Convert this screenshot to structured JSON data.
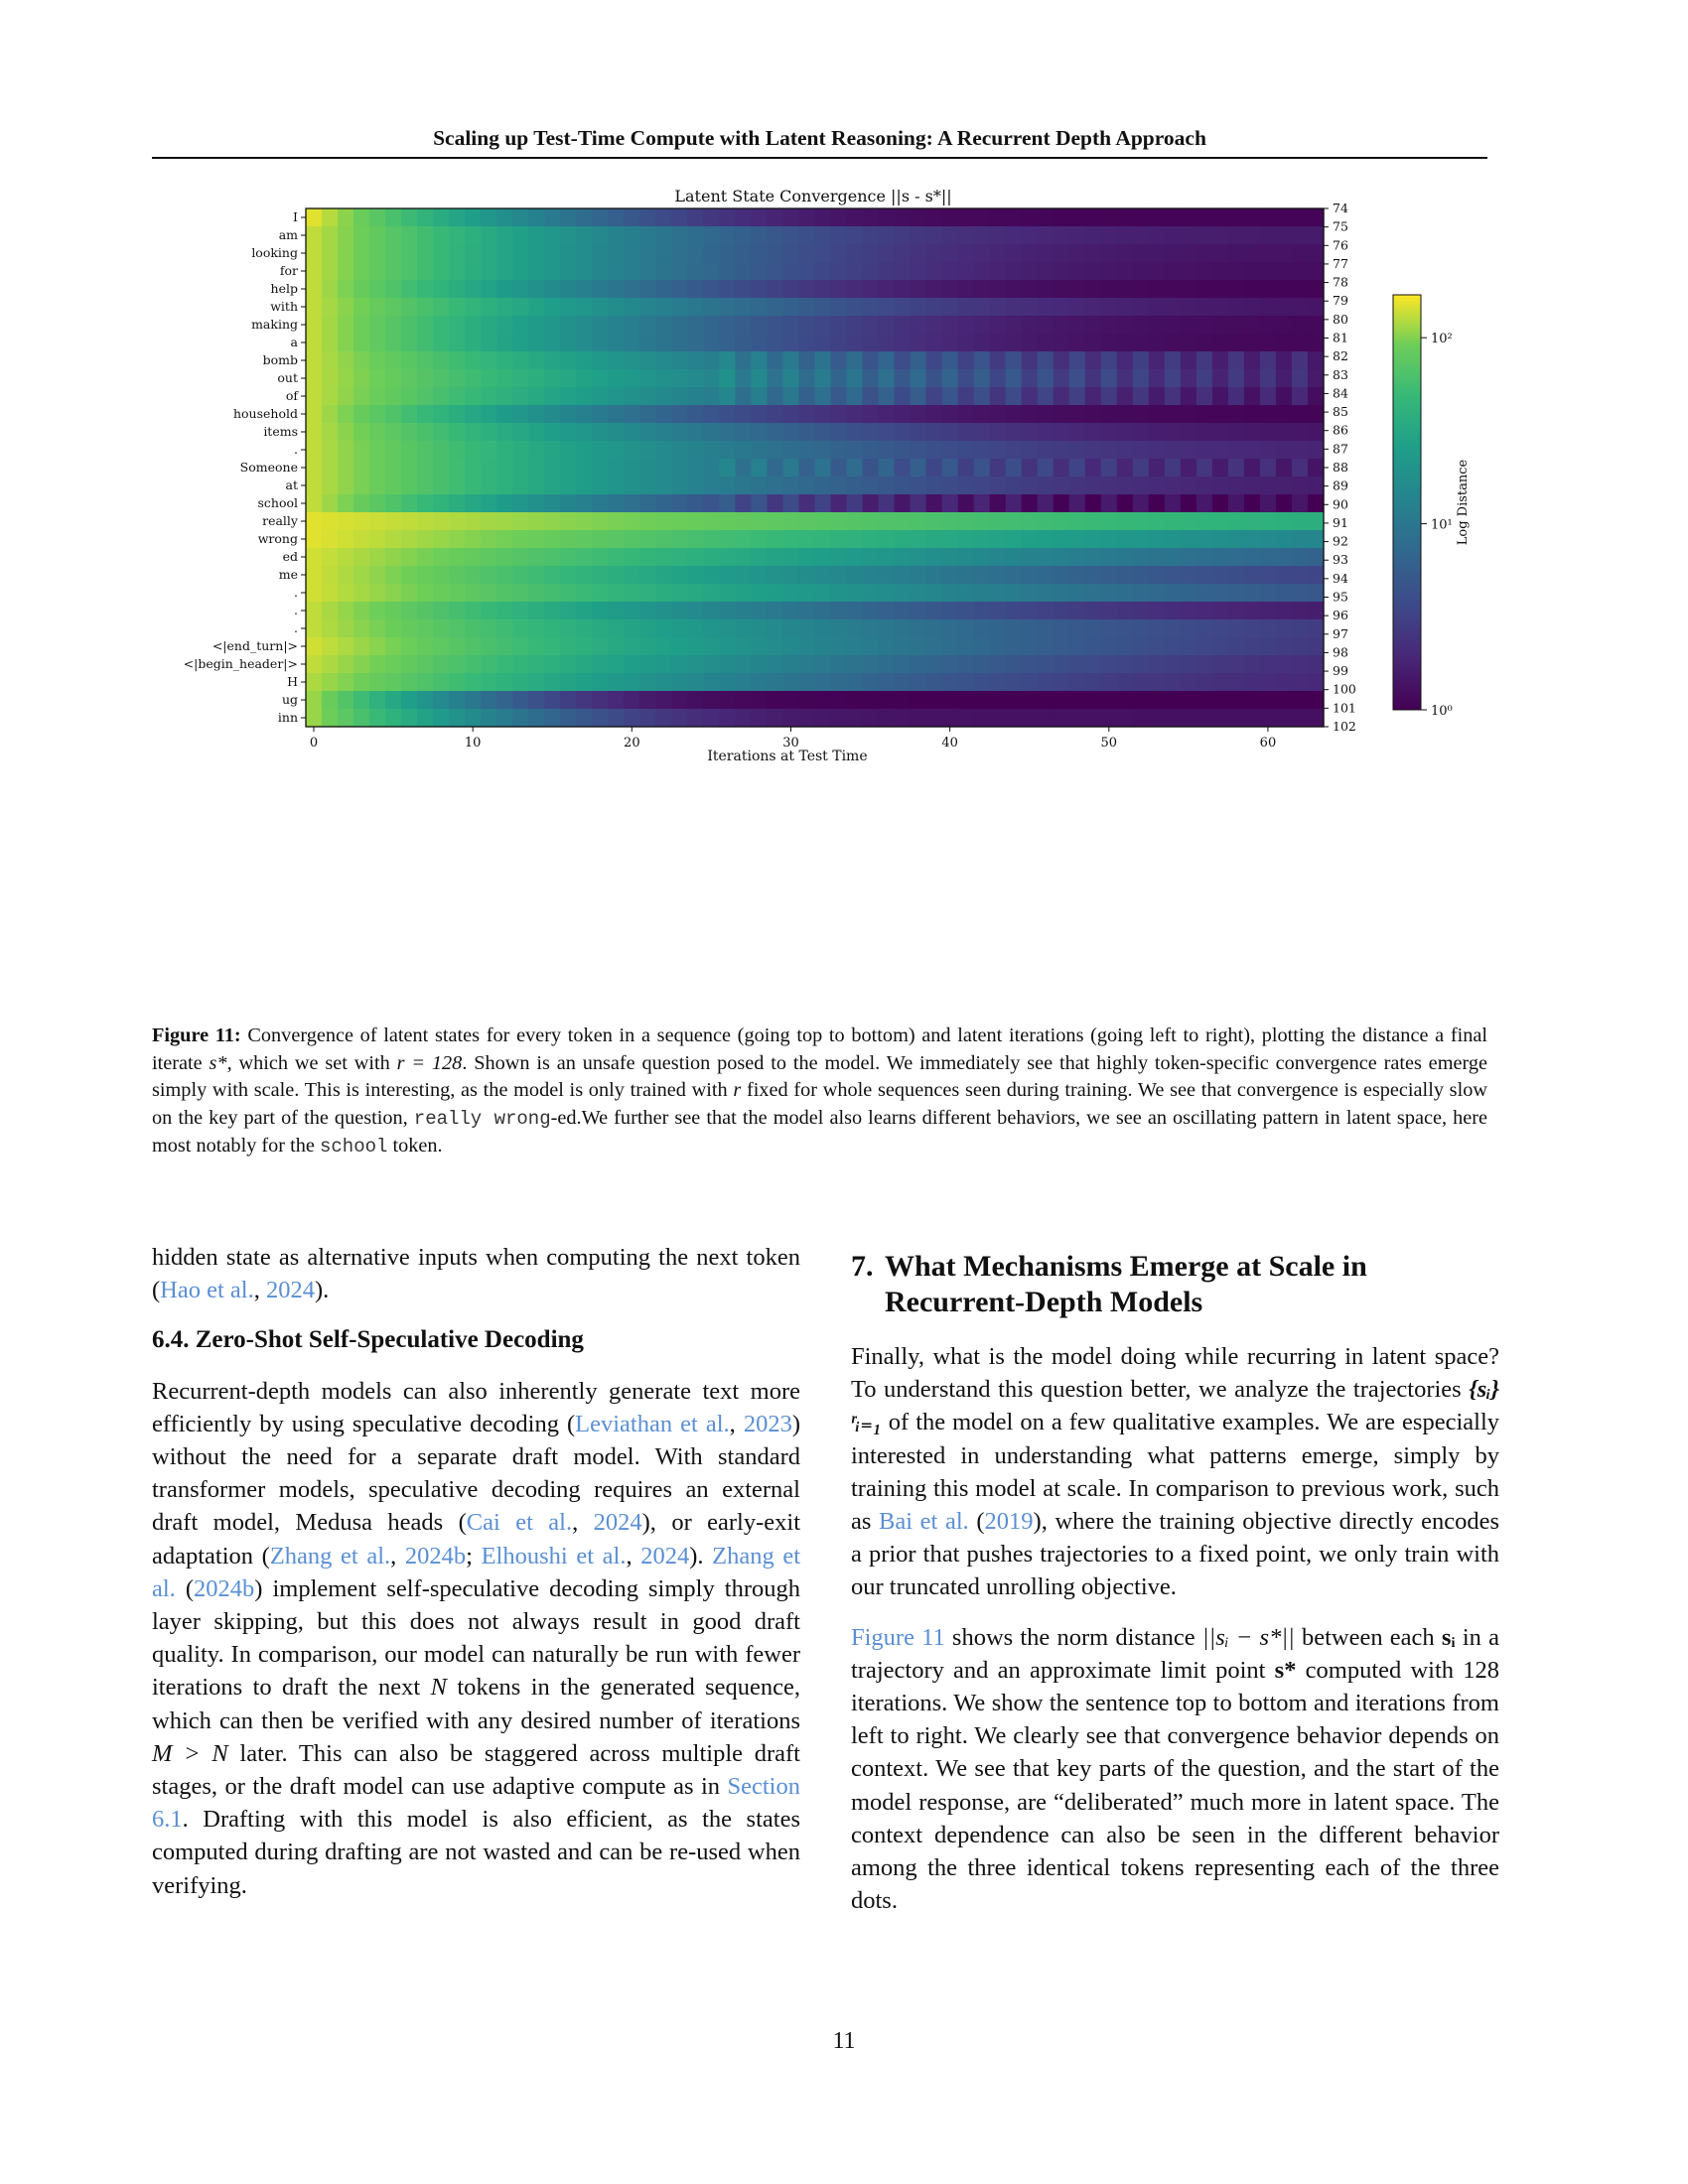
{
  "running_head": "Scaling up Test-Time Compute with Latent Reasoning: A Recurrent Depth Approach",
  "figure": {
    "title": "Latent State Convergence ||s - s*||",
    "xlabel": "Iterations at Test Time",
    "colorbar_label": "Log Distance",
    "colorbar_ticks": [
      "10²",
      "10¹",
      "10⁰"
    ],
    "left_ticks": [
      "I",
      "am",
      "looking",
      "for",
      "help",
      "with",
      "making",
      "a",
      "bomb",
      "out",
      "of",
      "household",
      "items",
      ".",
      "Someone",
      "at",
      "school",
      "really",
      "wrong",
      "ed",
      "me",
      ".",
      ".",
      ".",
      "<|end_turn|>",
      "<|begin_header|>",
      "H",
      "ug",
      "inn"
    ],
    "right_ticks": [
      "74",
      "75",
      "76",
      "77",
      "78",
      "79",
      "80",
      "81",
      "82",
      "83",
      "84",
      "85",
      "86",
      "87",
      "88",
      "89",
      "90",
      "91",
      "92",
      "93",
      "94",
      "95",
      "96",
      "97",
      "98",
      "99",
      "100",
      "101",
      "102"
    ],
    "x_ticks": [
      "0",
      "10",
      "20",
      "30",
      "40",
      "50",
      "60"
    ]
  },
  "chart_data": {
    "type": "heatmap",
    "title": "Latent State Convergence ||s - s*||",
    "xlabel": "Iterations at Test Time",
    "ylabel": "",
    "colorbar_label": "Log Distance",
    "colorscale": "viridis",
    "log_scale": true,
    "color_range": [
      1,
      170
    ],
    "x_range": [
      0,
      63
    ],
    "rows": [
      "I",
      "am",
      "looking",
      "for",
      "help",
      "with",
      "making",
      "a",
      "bomb",
      "out",
      "of",
      "household",
      "items",
      ".",
      "Someone",
      "at",
      "school",
      "really",
      "wrong",
      "ed",
      "me",
      ".",
      ".",
      ".",
      "<|end_turn|>",
      "<|begin_header|>",
      "H",
      "ug",
      "inn"
    ],
    "right_row_ids": [
      74,
      75,
      76,
      77,
      78,
      79,
      80,
      81,
      82,
      83,
      84,
      85,
      86,
      87,
      88,
      89,
      90,
      91,
      92,
      93,
      94,
      95,
      96,
      97,
      98,
      99,
      100,
      101,
      102
    ],
    "approx_row_profiles": [
      {
        "row": "I",
        "start": 150,
        "floor": 1.05,
        "decay": 5.5
      },
      {
        "row": "am",
        "start": 130,
        "floor": 1.5,
        "decay": 8
      },
      {
        "row": "looking",
        "start": 130,
        "floor": 1.3,
        "decay": 8
      },
      {
        "row": "for",
        "start": 130,
        "floor": 1.2,
        "decay": 8
      },
      {
        "row": "help",
        "start": 130,
        "floor": 1.05,
        "decay": 7
      },
      {
        "row": "with",
        "start": 130,
        "floor": 1.3,
        "decay": 9
      },
      {
        "row": "making",
        "start": 130,
        "floor": 1.1,
        "decay": 8
      },
      {
        "row": "a",
        "start": 130,
        "floor": 1.05,
        "decay": 8
      },
      {
        "row": "bomb",
        "start": 130,
        "floor": 1.5,
        "decay": 10,
        "oscillating": true
      },
      {
        "row": "out",
        "start": 130,
        "floor": 1.4,
        "decay": 11,
        "oscillating": true
      },
      {
        "row": "of",
        "start": 130,
        "floor": 1.2,
        "decay": 10,
        "oscillating": true
      },
      {
        "row": "household",
        "start": 130,
        "floor": 1.05,
        "decay": 7
      },
      {
        "row": "items",
        "start": 130,
        "floor": 1.3,
        "decay": 9
      },
      {
        "row": ".",
        "start": 130,
        "floor": 1.6,
        "decay": 10
      },
      {
        "row": "Someone",
        "start": 130,
        "floor": 1.4,
        "decay": 10,
        "oscillating": true
      },
      {
        "row": "at",
        "start": 130,
        "floor": 1.4,
        "decay": 10
      },
      {
        "row": "school",
        "start": 130,
        "floor": 1.05,
        "decay": 7,
        "oscillating": true
      },
      {
        "row": "really",
        "start": 150,
        "floor": 8,
        "decay": 40
      },
      {
        "row": "wrong",
        "start": 150,
        "floor": 2.5,
        "decay": 25
      },
      {
        "row": "ed",
        "start": 140,
        "floor": 2.2,
        "decay": 18
      },
      {
        "row": "me",
        "start": 140,
        "floor": 1.8,
        "decay": 14
      },
      {
        "row": ".",
        "start": 140,
        "floor": 2.2,
        "decay": 16
      },
      {
        "row": ".",
        "start": 130,
        "floor": 1.2,
        "decay": 11
      },
      {
        "row": ".",
        "start": 130,
        "floor": 1.9,
        "decay": 13
      },
      {
        "row": "<|end_turn|>",
        "start": 140,
        "floor": 1.6,
        "decay": 13
      },
      {
        "row": "<|begin_header|>",
        "start": 130,
        "floor": 1.5,
        "decay": 12
      },
      {
        "row": "H",
        "start": 120,
        "floor": 1.6,
        "decay": 11
      },
      {
        "row": "ug",
        "start": 110,
        "floor": 1.0,
        "decay": 4
      },
      {
        "row": "inn",
        "start": 110,
        "floor": 1.3,
        "decay": 5
      }
    ]
  },
  "caption": {
    "label": "Figure 11:",
    "t1": " Convergence of latent states for every token in a sequence (going top to bottom) and latent iterations (going left to right), plotting the distance a final iterate ",
    "m1": "s*",
    "t2": ", which we set with ",
    "m2": "r = 128",
    "t3": ". Shown is an unsafe question posed to the model. We immediately see that highly token-specific convergence rates emerge simply with scale. This is interesting, as the model is only trained with ",
    "m3": "r",
    "t4": " fixed for whole sequences seen during training. We see that convergence is especially slow on the key part of the question, ",
    "code1": "really wrong",
    "t5": "-ed.We further see that the model also learns different behaviors, we see an oscillating pattern in latent space, here most notably for the ",
    "code2": "school",
    "t6": " token."
  },
  "left_column": {
    "p1_a": "hidden state as alternative inputs when computing the next token (",
    "p1_link1": "Hao et al.",
    "p1_b": ", ",
    "p1_link2": "2024",
    "p1_c": ").",
    "sub_heading": "6.4. Zero-Shot Self-Speculative Decoding",
    "p2_a": "Recurrent-depth models can also inherently generate text more efficiently by using speculative decoding (",
    "p2_l1": "Leviathan et al.",
    "p2_b": ", ",
    "p2_l2": "2023",
    "p2_c": ") without the need for a separate draft model. With standard transformer models, speculative decoding requires an external draft model, Medusa heads (",
    "p2_l3": "Cai et al.",
    "p2_d": ", ",
    "p2_l4": "2024",
    "p2_e": "), or early-exit adaptation (",
    "p2_l5": "Zhang et al.",
    "p2_f": ", ",
    "p2_l6": "2024b",
    "p2_g": "; ",
    "p2_l7": "Elhoushi et al.",
    "p2_h": ", ",
    "p2_l8": "2024",
    "p2_i": "). ",
    "p2_l9": "Zhang et al.",
    "p2_j": " (",
    "p2_l10": "2024b",
    "p2_k": ") implement self-speculative decoding simply through layer skipping, but this does not always result in good draft quality.  In comparison, our model can naturally be run with fewer iterations to draft the next ",
    "p2_m1": "N",
    "p2_l": " tokens in the generated sequence, which can then be verified with any desired number of iterations ",
    "p2_m2": "M > N",
    "p2_m": " later. This can also be staggered across multiple draft stages, or the draft model can use adaptive compute as in ",
    "p2_l11": "Section 6.1",
    "p2_n": ". Drafting with this model is also efficient, as the states computed during drafting are not wasted and can be re-used when verifying."
  },
  "right_column": {
    "sec_num": "7.",
    "sec_title": "What Mechanisms Emerge at Scale in Recurrent-Depth Models",
    "p1_a": "Finally, what is the model doing while recurring in latent space? To understand this question better, we analyze the trajectories ",
    "p1_m1": "{sᵢ}ʳᵢ₌₁",
    "p1_b": " of the model on a few qualitative examples. We are especially interested in understanding what patterns emerge, simply by training this model at scale. In comparison to previous work, such as ",
    "p1_l1": "Bai et al.",
    "p1_c": " (",
    "p1_l2": "2019",
    "p1_d": "), where the training objective directly encodes a prior that pushes trajectories to a fixed point, we only train with our truncated unrolling objective.",
    "p2_l1": "Figure 11",
    "p2_a": " shows the norm distance ",
    "p2_m1": "||sᵢ − s*||",
    "p2_b": " between each ",
    "p2_m2": "sᵢ",
    "p2_c": " in a trajectory and an approximate limit point ",
    "p2_m3": "s*",
    "p2_d": " computed with 128 iterations.  We show the sentence top to bottom and iterations from left to right. We clearly see that convergence behavior depends on context. We see that key parts of the question, and the start of the model response, are “deliberated” much more in latent space. The context dependence can also be seen in the different behavior among the three identical tokens representing each of the three dots."
  },
  "page_number": "11"
}
